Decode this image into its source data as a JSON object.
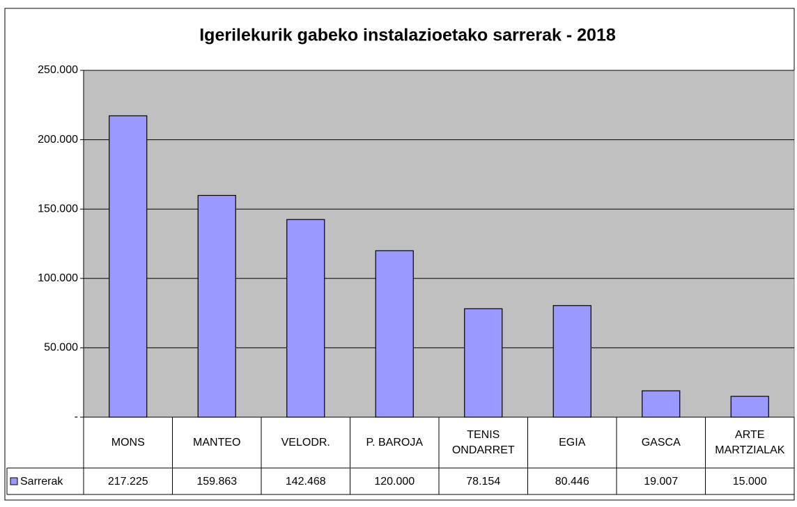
{
  "chart_data": {
    "type": "bar",
    "title": "Igerilekurik gabeko instalazioetako sarrerak - 2018",
    "categories": [
      "MONS",
      "MANTEO",
      "VELODR.",
      "P. BAROJA",
      "TENIS ONDARRET",
      "EGIA",
      "GASCA",
      "ARTE MARTZIALAK"
    ],
    "series": [
      {
        "name": "Sarrerak",
        "color": "#9999ff",
        "values": [
          217225,
          159863,
          142468,
          120000,
          78154,
          80446,
          19007,
          15000
        ],
        "value_labels": [
          "217.225",
          "159.863",
          "142.468",
          "120.000",
          "78.154",
          "80.446",
          "19.007",
          "15.000"
        ]
      }
    ],
    "ylim": [
      0,
      250000
    ],
    "yticks": [
      {
        "value": 0,
        "label": "-"
      },
      {
        "value": 50000,
        "label": "50.000"
      },
      {
        "value": 100000,
        "label": "100.000"
      },
      {
        "value": 150000,
        "label": "150.000"
      },
      {
        "value": 200000,
        "label": "200.000"
      },
      {
        "value": 250000,
        "label": "250.000"
      }
    ],
    "grid": true
  }
}
